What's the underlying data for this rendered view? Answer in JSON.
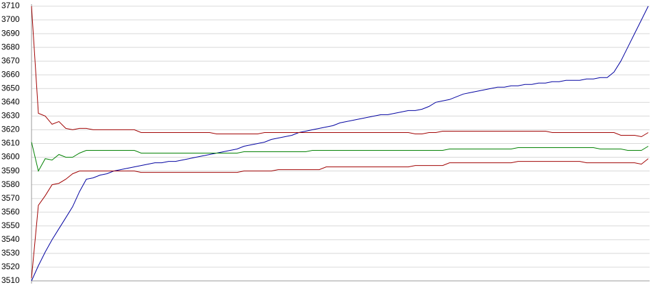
{
  "chart_data": {
    "type": "line",
    "ylim": [
      3510,
      3710
    ],
    "yticks": [
      3510,
      3520,
      3530,
      3540,
      3550,
      3560,
      3570,
      3580,
      3590,
      3600,
      3610,
      3620,
      3630,
      3640,
      3650,
      3660,
      3670,
      3680,
      3690,
      3700,
      3710
    ],
    "grid": true,
    "series": [
      {
        "color": "#0000a0",
        "values": [
          3510,
          3521,
          3531,
          3540,
          3548,
          3556,
          3564,
          3575,
          3584,
          3585,
          3587,
          3588,
          3590,
          3591,
          3592,
          3593,
          3594,
          3595,
          3596,
          3596,
          3597,
          3597,
          3598,
          3599,
          3600,
          3601,
          3602,
          3603,
          3604,
          3605,
          3606,
          3608,
          3609,
          3610,
          3611,
          3613,
          3614,
          3615,
          3616,
          3618,
          3619,
          3620,
          3621,
          3622,
          3623,
          3625,
          3626,
          3627,
          3628,
          3629,
          3630,
          3631,
          3631,
          3632,
          3633,
          3634,
          3634,
          3635,
          3637,
          3640,
          3641,
          3642,
          3644,
          3646,
          3647,
          3648,
          3649,
          3650,
          3651,
          3651,
          3652,
          3652,
          3653,
          3653,
          3654,
          3654,
          3655,
          3655,
          3656,
          3656,
          3656,
          3657,
          3657,
          3658,
          3658,
          3662,
          3670,
          3680,
          3690,
          3700,
          3710
        ]
      },
      {
        "color": "#a00000",
        "values": [
          3710,
          3632,
          3630,
          3624,
          3626,
          3621,
          3620,
          3621,
          3621,
          3620,
          3620,
          3620,
          3620,
          3620,
          3620,
          3620,
          3618,
          3618,
          3618,
          3618,
          3618,
          3618,
          3618,
          3618,
          3618,
          3618,
          3618,
          3617,
          3617,
          3617,
          3617,
          3617,
          3617,
          3617,
          3618,
          3618,
          3618,
          3618,
          3618,
          3618,
          3618,
          3618,
          3618,
          3618,
          3618,
          3618,
          3618,
          3618,
          3618,
          3618,
          3618,
          3618,
          3618,
          3618,
          3618,
          3618,
          3617,
          3617,
          3618,
          3618,
          3619,
          3619,
          3619,
          3619,
          3619,
          3619,
          3619,
          3619,
          3619,
          3619,
          3619,
          3619,
          3619,
          3619,
          3619,
          3619,
          3618,
          3618,
          3618,
          3618,
          3618,
          3618,
          3618,
          3618,
          3618,
          3618,
          3616,
          3616,
          3616,
          3615,
          3618
        ]
      },
      {
        "color": "#008000",
        "values": [
          3611,
          3590,
          3599,
          3598,
          3602,
          3600,
          3600,
          3603,
          3605,
          3605,
          3605,
          3605,
          3605,
          3605,
          3605,
          3605,
          3603,
          3603,
          3603,
          3603,
          3603,
          3603,
          3603,
          3603,
          3603,
          3603,
          3603,
          3603,
          3603,
          3603,
          3603,
          3604,
          3604,
          3604,
          3604,
          3604,
          3604,
          3604,
          3604,
          3604,
          3604,
          3605,
          3605,
          3605,
          3605,
          3605,
          3605,
          3605,
          3605,
          3605,
          3605,
          3605,
          3605,
          3605,
          3605,
          3605,
          3605,
          3605,
          3605,
          3605,
          3605,
          3606,
          3606,
          3606,
          3606,
          3606,
          3606,
          3606,
          3606,
          3606,
          3606,
          3607,
          3607,
          3607,
          3607,
          3607,
          3607,
          3607,
          3607,
          3607,
          3607,
          3607,
          3607,
          3606,
          3606,
          3606,
          3606,
          3605,
          3605,
          3605,
          3608
        ]
      },
      {
        "color": "#a00000",
        "values": [
          3512,
          3565,
          3572,
          3580,
          3581,
          3584,
          3588,
          3590,
          3590,
          3590,
          3590,
          3590,
          3590,
          3590,
          3590,
          3590,
          3589,
          3589,
          3589,
          3589,
          3589,
          3589,
          3589,
          3589,
          3589,
          3589,
          3589,
          3589,
          3589,
          3589,
          3589,
          3590,
          3590,
          3590,
          3590,
          3590,
          3591,
          3591,
          3591,
          3591,
          3591,
          3591,
          3591,
          3593,
          3593,
          3593,
          3593,
          3593,
          3593,
          3593,
          3593,
          3593,
          3593,
          3593,
          3593,
          3593,
          3594,
          3594,
          3594,
          3594,
          3594,
          3596,
          3596,
          3596,
          3596,
          3596,
          3596,
          3596,
          3596,
          3596,
          3596,
          3597,
          3597,
          3597,
          3597,
          3597,
          3597,
          3597,
          3597,
          3597,
          3597,
          3596,
          3596,
          3596,
          3596,
          3596,
          3596,
          3596,
          3596,
          3595,
          3599
        ]
      }
    ]
  }
}
